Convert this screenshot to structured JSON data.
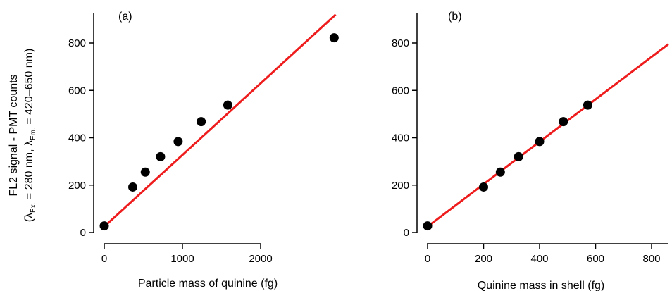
{
  "y_axis_title": {
    "line1": "FL2 signal - PMT counts",
    "line2_part1": "(λ",
    "line2_sub1": "Ex.",
    "line2_part2": " = 280  nm,   λ",
    "line2_sub2": "Em.",
    "line2_part3": " = 420–650 nm)"
  },
  "chart_data": [
    {
      "type": "scatter",
      "panel_label": "(a)",
      "xlabel": "Particle mass of quinine (fg)",
      "ylabel": "",
      "xlim": [
        -60,
        3000
      ],
      "ylim": [
        0,
        920
      ],
      "x_ticks": [
        0,
        1000,
        2000
      ],
      "x_tick_labels": [
        "0",
        "1000",
        "2000"
      ],
      "y_ticks": [
        0,
        200,
        400,
        600,
        800
      ],
      "y_tick_labels": [
        "0",
        "200",
        "400",
        "600",
        "800"
      ],
      "points": [
        {
          "x": 0,
          "y": 28
        },
        {
          "x": 365,
          "y": 192
        },
        {
          "x": 525,
          "y": 255
        },
        {
          "x": 720,
          "y": 320
        },
        {
          "x": 945,
          "y": 384
        },
        {
          "x": 1240,
          "y": 468
        },
        {
          "x": 1580,
          "y": 538
        },
        {
          "x": 2940,
          "y": 822
        }
      ],
      "fit_line": {
        "x": [
          0,
          2960
        ],
        "y": [
          25,
          920
        ]
      },
      "colors": {
        "points": "#000000",
        "fit": "#ee1c1c"
      }
    },
    {
      "type": "scatter",
      "panel_label": "(b)",
      "xlabel": "Quinine mass in shell (fg)",
      "ylabel": "",
      "xlim": [
        -10,
        860
      ],
      "ylim": [
        0,
        920
      ],
      "x_ticks": [
        0,
        200,
        400,
        600,
        800
      ],
      "x_tick_labels": [
        "0",
        "200",
        "400",
        "600",
        "800"
      ],
      "y_ticks": [
        0,
        200,
        400,
        600,
        800
      ],
      "y_tick_labels": [
        "0",
        "200",
        "400",
        "600",
        "800"
      ],
      "points": [
        {
          "x": 0,
          "y": 28
        },
        {
          "x": 200,
          "y": 192
        },
        {
          "x": 260,
          "y": 255
        },
        {
          "x": 325,
          "y": 320
        },
        {
          "x": 400,
          "y": 384
        },
        {
          "x": 485,
          "y": 468
        },
        {
          "x": 572,
          "y": 538
        }
      ],
      "fit_line": {
        "x": [
          0,
          860
        ],
        "y": [
          25,
          795
        ]
      },
      "colors": {
        "points": "#000000",
        "fit": "#ee1c1c"
      }
    }
  ]
}
